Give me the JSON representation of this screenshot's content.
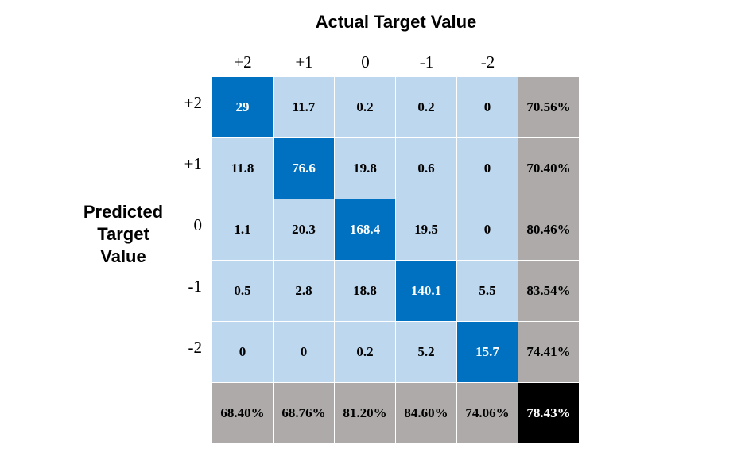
{
  "chart_data": {
    "type": "heatmap",
    "title": "Actual Target Value",
    "ylabel": [
      "Predicted",
      "Target",
      "Value"
    ],
    "col_labels": [
      "+2",
      "+1",
      "0",
      "-1",
      "-2"
    ],
    "row_labels": [
      "+2",
      "+1",
      "0",
      "-1",
      "-2"
    ],
    "values": [
      [
        "29",
        "11.7",
        "0.2",
        "0.2",
        "0"
      ],
      [
        "11.8",
        "76.6",
        "19.8",
        "0.6",
        "0"
      ],
      [
        "1.1",
        "20.3",
        "168.4",
        "19.5",
        "0"
      ],
      [
        "0.5",
        "2.8",
        "18.8",
        "140.1",
        "5.5"
      ],
      [
        "0",
        "0",
        "0.2",
        "5.2",
        "15.7"
      ]
    ],
    "row_totals": [
      "70.56%",
      "70.40%",
      "80.46%",
      "83.54%",
      "74.41%"
    ],
    "col_totals": [
      "68.40%",
      "68.76%",
      "81.20%",
      "84.60%",
      "74.06%"
    ],
    "overall": "78.43%",
    "colors": {
      "cell": "#bdd7ee",
      "diagonal": "#0070c0",
      "summary": "#aeaaaa",
      "overall": "#000000"
    }
  }
}
